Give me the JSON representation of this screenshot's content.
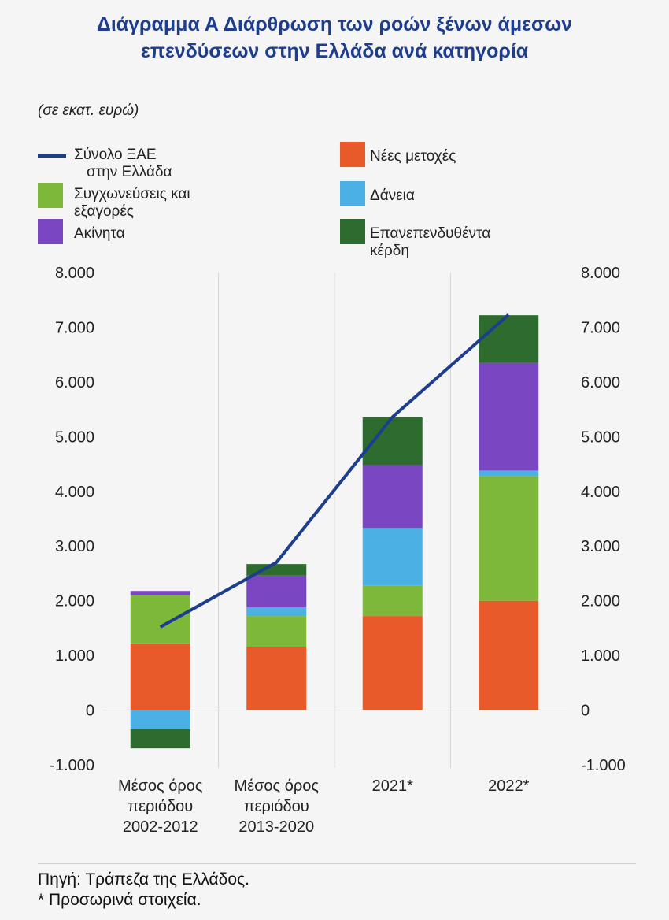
{
  "title_line1": "Διάγραμμα Α Διάρθρωση των ροών ξένων άμεσων",
  "title_line2": "επενδύσεων στην Ελλάδα ανά κατηγορία",
  "unit": "(σε εκατ. ευρώ)",
  "legend": {
    "total_line1": "Σύνολο ΞΑΕ",
    "total_line2": "στην Ελλάδα",
    "mergers_line1": "Συγχωνεύσεις και",
    "mergers_line2": "εξαγορές",
    "realestate": "Ακίνητα",
    "newshares": "Νέες μετοχές",
    "loans": "Δάνεια",
    "reinvested_line1": "Επανεπενδυθέντα",
    "reinvested_line2": "κέρδη"
  },
  "colors": {
    "new_shares": "#e85a29",
    "mergers": "#7db83a",
    "loans": "#4bb0e3",
    "real_estate": "#7b46c2",
    "reinvested": "#2e6b2e",
    "total_line": "#1d3d8f"
  },
  "chart_data": {
    "type": "bar",
    "stacked": true,
    "categories": [
      [
        "Μέσος όρος",
        "περιόδου",
        "2002-2012"
      ],
      [
        "Μέσος όρος",
        "περιόδου",
        "2013-2020"
      ],
      [
        "2021*"
      ],
      [
        "2022*"
      ]
    ],
    "series": [
      {
        "name": "Νέες μετοχές",
        "values": [
          1220,
          1160,
          1720,
          2000
        ]
      },
      {
        "name": "Συγχωνεύσεις και εξαγορές",
        "values": [
          880,
          560,
          560,
          2280
        ]
      },
      {
        "name": "Δάνεια",
        "values": [
          -350,
          160,
          1050,
          100
        ]
      },
      {
        "name": "Ακίνητα",
        "values": [
          80,
          580,
          1150,
          1970
        ]
      },
      {
        "name": "Επανεπενδυθέντα κέρδη",
        "values": [
          -350,
          210,
          870,
          870
        ]
      }
    ],
    "line_series": {
      "name": "Σύνολο ΞΑΕ στην Ελλάδα",
      "values": [
        1520,
        2700,
        5360,
        7230
      ]
    },
    "ylim": [
      -1000,
      8000
    ],
    "yticks": [
      "-1.000",
      "0",
      "1.000",
      "2.000",
      "3.000",
      "4.000",
      "5.000",
      "6.000",
      "7.000",
      "8.000"
    ],
    "ytick_values": [
      -1000,
      0,
      1000,
      2000,
      3000,
      4000,
      5000,
      6000,
      7000,
      8000
    ],
    "secondary_axis": true,
    "grid": "vertical separators"
  },
  "footer": {
    "source": "Πηγή: Τράπεζα της Ελλάδος.",
    "note": "* Προσωρινά στοιχεία."
  }
}
